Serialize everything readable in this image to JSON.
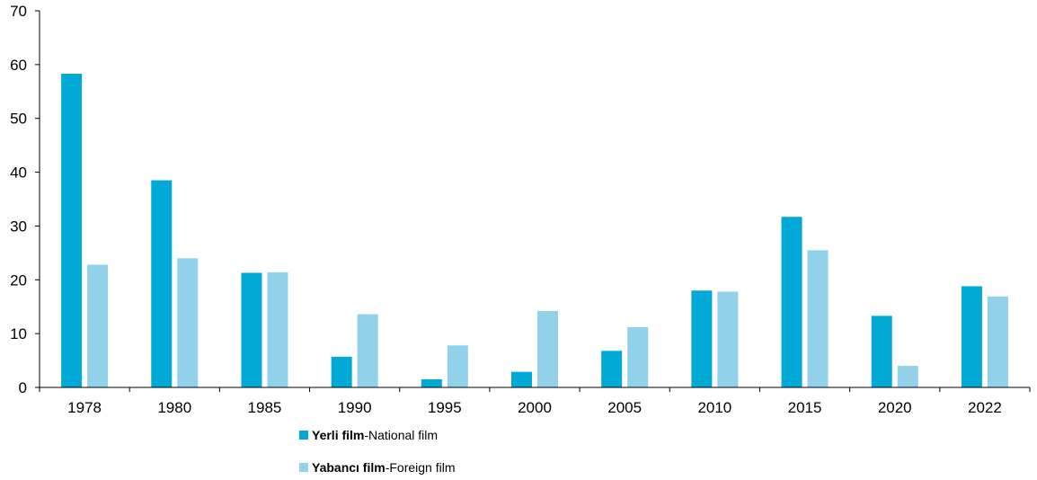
{
  "chart_data": {
    "type": "bar",
    "categories": [
      "1978",
      "1980",
      "1985",
      "1990",
      "1995",
      "2000",
      "2005",
      "2010",
      "2015",
      "2020",
      "2022"
    ],
    "series": [
      {
        "name_bold": "Yerli film",
        "name_rest": "-National film",
        "color": "#00a9d6",
        "values": [
          58.3,
          38.5,
          21.3,
          5.7,
          1.5,
          2.9,
          6.8,
          18.0,
          31.7,
          13.3,
          18.8
        ]
      },
      {
        "name_bold": "Yabancı film",
        "name_rest": "-Foreign film",
        "color": "#92d1ea",
        "values": [
          22.8,
          24.0,
          21.4,
          13.6,
          7.8,
          14.2,
          11.2,
          17.8,
          25.5,
          4.0,
          16.9
        ]
      }
    ],
    "ylim": [
      0,
      70
    ],
    "yticks": [
      0,
      10,
      20,
      30,
      40,
      50,
      60,
      70
    ],
    "grid": false,
    "legend_position": "bottom"
  }
}
